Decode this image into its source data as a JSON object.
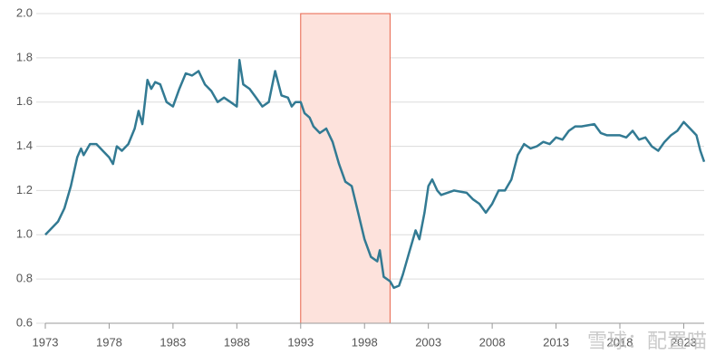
{
  "chart_data": {
    "type": "line",
    "x": [
      1973.0,
      1973.5,
      1974.0,
      1974.5,
      1975.0,
      1975.5,
      1975.8,
      1976.0,
      1976.5,
      1977.0,
      1977.5,
      1978.0,
      1978.3,
      1978.6,
      1979.0,
      1979.5,
      1980.0,
      1980.3,
      1980.6,
      1981.0,
      1981.3,
      1981.6,
      1982.0,
      1982.5,
      1983.0,
      1983.5,
      1984.0,
      1984.5,
      1985.0,
      1985.5,
      1986.0,
      1986.5,
      1987.0,
      1987.5,
      1988.0,
      1988.2,
      1988.5,
      1989.0,
      1989.5,
      1990.0,
      1990.5,
      1991.0,
      1991.5,
      1992.0,
      1992.3,
      1992.6,
      1993.0,
      1993.3,
      1993.7,
      1994.0,
      1994.5,
      1995.0,
      1995.5,
      1996.0,
      1996.5,
      1997.0,
      1997.5,
      1998.0,
      1998.5,
      1999.0,
      1999.2,
      1999.5,
      2000.0,
      2000.3,
      2000.7,
      2001.0,
      2001.5,
      2002.0,
      2002.3,
      2002.7,
      2003.0,
      2003.3,
      2003.7,
      2004.0,
      2005.0,
      2006.0,
      2006.5,
      2007.0,
      2007.5,
      2008.0,
      2008.5,
      2009.0,
      2009.5,
      2010.0,
      2010.5,
      2011.0,
      2011.5,
      2012.0,
      2012.5,
      2013.0,
      2013.5,
      2014.0,
      2014.5,
      2015.0,
      2016.0,
      2016.5,
      2017.0,
      2018.0,
      2018.5,
      2019.0,
      2019.5,
      2020.0,
      2020.5,
      2021.0,
      2021.5,
      2022.0,
      2022.5,
      2023.0,
      2023.5,
      2024.0,
      2024.3,
      2024.6
    ],
    "series": [
      {
        "color": "#327a93",
        "values": [
          1.0,
          1.03,
          1.06,
          1.12,
          1.22,
          1.35,
          1.39,
          1.36,
          1.41,
          1.41,
          1.38,
          1.35,
          1.32,
          1.4,
          1.38,
          1.41,
          1.48,
          1.56,
          1.5,
          1.7,
          1.66,
          1.69,
          1.68,
          1.6,
          1.58,
          1.66,
          1.73,
          1.72,
          1.74,
          1.68,
          1.65,
          1.6,
          1.62,
          1.6,
          1.58,
          1.79,
          1.68,
          1.66,
          1.62,
          1.58,
          1.6,
          1.74,
          1.63,
          1.62,
          1.58,
          1.6,
          1.6,
          1.55,
          1.53,
          1.49,
          1.46,
          1.48,
          1.42,
          1.32,
          1.24,
          1.22,
          1.1,
          0.98,
          0.9,
          0.88,
          0.93,
          0.81,
          0.79,
          0.76,
          0.77,
          0.82,
          0.92,
          1.02,
          0.98,
          1.1,
          1.22,
          1.25,
          1.2,
          1.18,
          1.2,
          1.19,
          1.16,
          1.14,
          1.1,
          1.14,
          1.2,
          1.2,
          1.25,
          1.36,
          1.41,
          1.39,
          1.4,
          1.42,
          1.41,
          1.44,
          1.43,
          1.47,
          1.49,
          1.49,
          1.5,
          1.46,
          1.45,
          1.45,
          1.44,
          1.47,
          1.43,
          1.44,
          1.4,
          1.38,
          1.42,
          1.45,
          1.47,
          1.51,
          1.48,
          1.45,
          1.38,
          1.33
        ]
      }
    ],
    "xlim": [
      1973,
      2024.6
    ],
    "xticks": [
      1973,
      1978,
      1983,
      1988,
      1993,
      1998,
      2003,
      2008,
      2013,
      2018,
      2023
    ],
    "ylim": [
      0.6,
      2.0
    ],
    "yticks": [
      {
        "value": 0.6,
        "label": "0.6"
      },
      {
        "value": 0.8,
        "label": "0.8"
      },
      {
        "value": 1.0,
        "label": "1.0"
      },
      {
        "value": 1.2,
        "label": "1.2"
      },
      {
        "value": 1.4,
        "label": "1.4"
      },
      {
        "value": 1.6,
        "label": "1.6"
      },
      {
        "value": 1.8,
        "label": "1.8"
      },
      {
        "value": 2.0,
        "label": "2.0"
      }
    ],
    "grid": true,
    "highlight": {
      "x": [
        1993,
        2000
      ],
      "fill": "#fde2dc",
      "stroke": "#e8634a"
    },
    "watermark": "雪球：配置喵"
  }
}
